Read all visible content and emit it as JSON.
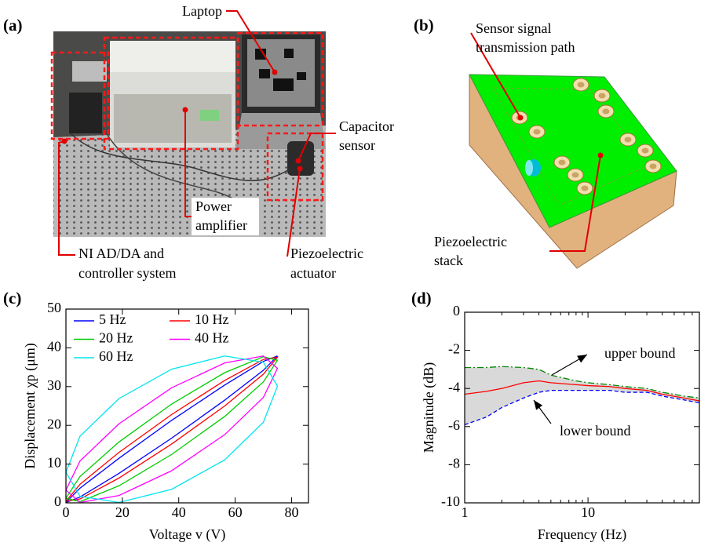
{
  "panel_labels": [
    "(a)",
    "(b)",
    "(c)",
    "(d)"
  ],
  "photo_annotations": [
    {
      "lines": [
        "Laptop"
      ]
    },
    {
      "lines": [
        "Capacitor",
        "sensor"
      ]
    },
    {
      "lines": [
        "Power",
        "amplifier"
      ]
    },
    {
      "lines": [
        "NI AD/DA and",
        "controller system"
      ]
    },
    {
      "lines": [
        "Piezoelectric",
        "actuator"
      ]
    }
  ],
  "diagram_annotations": [
    {
      "lines": [
        "Sensor signal",
        "transmission path"
      ]
    },
    {
      "lines": [
        "Piezoelectric",
        "stack"
      ]
    }
  ],
  "chart_data": [
    {
      "type": "line",
      "xlabel": "Voltage v (V)",
      "ylabel": "Displacement χp (μm)",
      "xlim": [
        0,
        86
      ],
      "xticks": [
        0,
        20,
        40,
        60,
        80
      ],
      "ylim": [
        0,
        50
      ],
      "yticks": [
        0,
        10,
        20,
        30,
        40,
        50
      ],
      "legend": "upper left",
      "series": [
        {
          "name": "5 Hz",
          "color": "#0000ff",
          "x": [
            0,
            5.0,
            18.8,
            37.5,
            56.3,
            70.0,
            75,
            70.0,
            56.3,
            37.5,
            18.8,
            5.0,
            0
          ],
          "values": [
            0.1,
            1.5,
            7.6,
            16.7,
            26.5,
            34.2,
            37.9,
            36.5,
            30.4,
            21.3,
            11.5,
            3.8,
            0.1
          ]
        },
        {
          "name": "10 Hz",
          "color": "#ff0000",
          "x": [
            0,
            5.0,
            18.8,
            37.5,
            56.3,
            70.0,
            75,
            70.0,
            56.3,
            37.5,
            18.8,
            5.0,
            0
          ],
          "values": [
            0.4,
            1.0,
            6.4,
            15.2,
            25.0,
            33.2,
            37.6,
            37.0,
            31.6,
            22.8,
            13.0,
            4.8,
            0.4
          ]
        },
        {
          "name": "20 Hz",
          "color": "#00cc00",
          "x": [
            0,
            5.0,
            18.8,
            37.5,
            56.3,
            70.0,
            75,
            70.0,
            56.3,
            37.5,
            18.8,
            5.0,
            0
          ],
          "values": [
            1.2,
            0.3,
            4.4,
            12.5,
            22.3,
            31.2,
            36.8,
            37.7,
            33.6,
            25.5,
            15.7,
            6.8,
            1.2
          ]
        },
        {
          "name": "40 Hz",
          "color": "#ff00ff",
          "x": [
            0,
            5.0,
            18.8,
            37.5,
            56.3,
            70.0,
            75,
            70.0,
            56.3,
            37.5,
            18.8,
            5.0,
            0
          ],
          "values": [
            3.3,
            0.1,
            1.9,
            8.3,
            17.6,
            27.2,
            34.7,
            37.9,
            36.1,
            29.7,
            20.4,
            10.8,
            3.3
          ]
        },
        {
          "name": "60 Hz",
          "color": "#00e5ee",
          "x": [
            0,
            5.0,
            18.8,
            37.5,
            56.3,
            70.0,
            75,
            70.0,
            56.3,
            37.5,
            18.8,
            5.0,
            0
          ],
          "values": [
            7.9,
            1.7,
            0.1,
            3.5,
            11.1,
            20.8,
            30.1,
            36.3,
            37.9,
            34.5,
            26.9,
            17.2,
            7.9
          ]
        }
      ]
    },
    {
      "type": "line",
      "xlabel": "Frequency (Hz)",
      "ylabel": "Magnitude (dB)",
      "xscale": "log",
      "xlim": [
        1,
        80
      ],
      "xticks": [
        1,
        10
      ],
      "xminorticks": [
        2,
        3,
        4,
        5,
        6,
        7,
        8,
        9,
        20,
        30,
        40,
        50,
        60,
        70,
        80
      ],
      "ylim": [
        -10,
        0
      ],
      "yticks": [
        -10,
        -8,
        -6,
        -4,
        -2,
        0
      ],
      "x": [
        1,
        1.5,
        2,
        3,
        4,
        5,
        8,
        10,
        15,
        20,
        30,
        40,
        60,
        80
      ],
      "fill_between": [
        0,
        2
      ],
      "fill_color": "#d9d9d9",
      "series": [
        {
          "color": "#008800",
          "dash": "dashdot",
          "values": [
            -2.9,
            -2.9,
            -2.85,
            -2.9,
            -3.0,
            -3.3,
            -3.6,
            -3.7,
            -3.8,
            -3.9,
            -4.0,
            -4.2,
            -4.4,
            -4.5
          ]
        },
        {
          "color": "#ff0000",
          "values": [
            -4.3,
            -4.15,
            -4.0,
            -3.7,
            -3.6,
            -3.7,
            -3.8,
            -3.85,
            -3.9,
            -4.0,
            -4.1,
            -4.3,
            -4.5,
            -4.65
          ]
        },
        {
          "color": "#0000ff",
          "dash": "dashed",
          "values": [
            -5.9,
            -5.5,
            -5.0,
            -4.5,
            -4.2,
            -4.1,
            -4.1,
            -4.1,
            -4.1,
            -4.2,
            -4.2,
            -4.4,
            -4.6,
            -4.75
          ]
        }
      ],
      "annotations": [
        "upper bound",
        "lower bound"
      ]
    }
  ]
}
